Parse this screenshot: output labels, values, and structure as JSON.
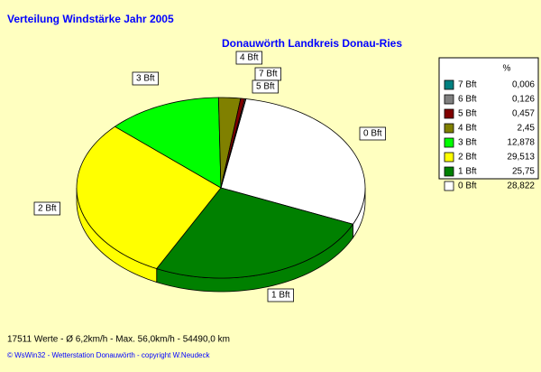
{
  "chart_data": {
    "type": "pie",
    "title": "Verteilung Windstärke  Jahr 2005",
    "subtitle": "Donauwörth Landkreis Donau-Ries",
    "legend_title": "%",
    "categories": [
      "7 Bft",
      "6 Bft",
      "5 Bft",
      "4 Bft",
      "3 Bft",
      "2 Bft",
      "1 Bft",
      "0 Bft"
    ],
    "values": [
      0.006,
      0.126,
      0.457,
      2.45,
      12.878,
      29.513,
      25.75,
      28.822
    ],
    "value_labels": [
      "0,006",
      "0,126",
      "0,457",
      "2,45",
      "12,878",
      "29,513",
      "25,75",
      "28,822"
    ],
    "colors": [
      "#008080",
      "#808080",
      "#800000",
      "#808000",
      "#00ff00",
      "#ffff00",
      "#008000",
      "#ffffff"
    ],
    "legend": "right",
    "footer": "17511 Werte   -   Ø 6,2km/h  -  Max. 56,0km/h  -   54490,0 km",
    "credit": "© WsWin32  -  Wetterstation Donauwörth  -  copyright W.Neudeck"
  }
}
